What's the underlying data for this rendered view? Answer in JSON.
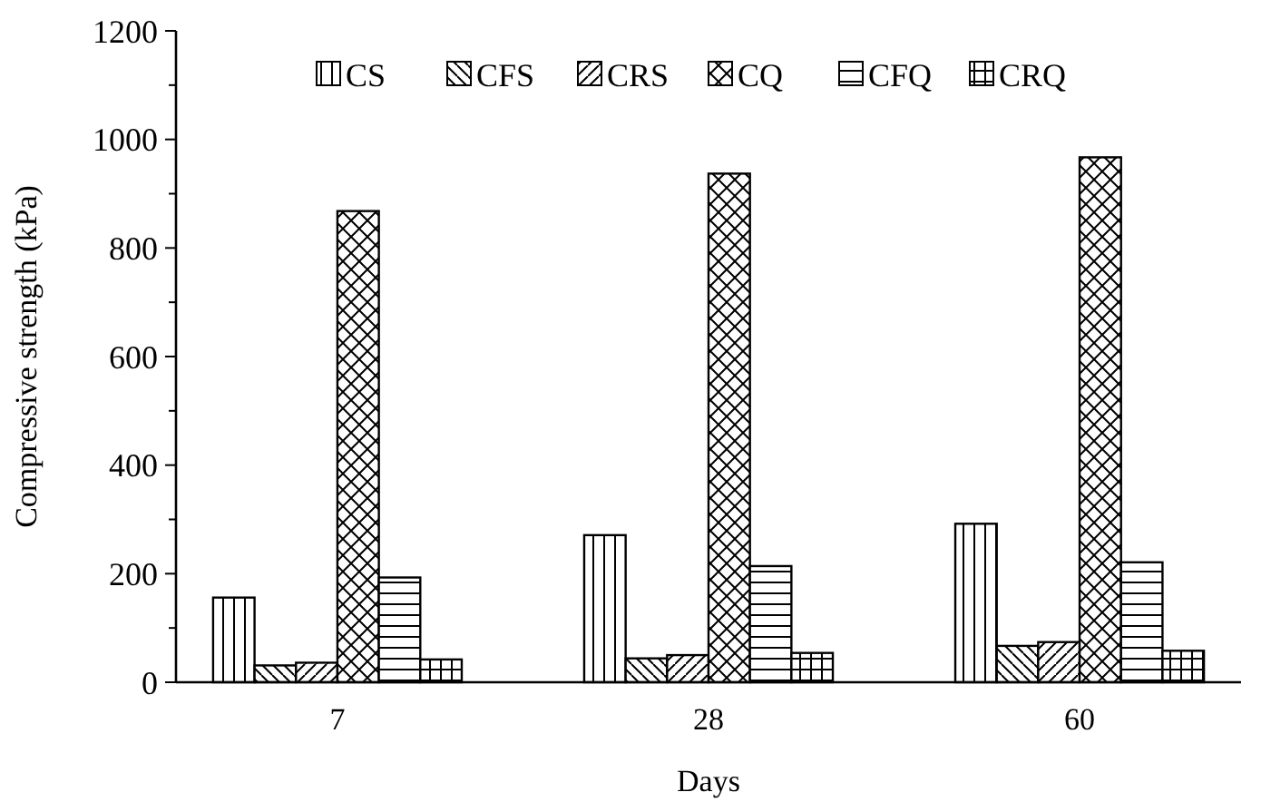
{
  "chart_data": {
    "type": "bar",
    "xlabel": "Days",
    "ylabel": "Compressive strength (kPa)",
    "categories": [
      "7",
      "28",
      "60"
    ],
    "series": [
      {
        "name": "CS",
        "color": "#000000",
        "values": [
          156,
          271,
          292
        ]
      },
      {
        "name": "CFS",
        "color": "#000000",
        "values": [
          31,
          44,
          67
        ]
      },
      {
        "name": "CRS",
        "color": "#000000",
        "values": [
          36,
          50,
          74
        ]
      },
      {
        "name": "CQ",
        "color": "#000000",
        "values": [
          868,
          937,
          967
        ]
      },
      {
        "name": "CFQ",
        "color": "#000000",
        "values": [
          193,
          214,
          221
        ]
      },
      {
        "name": "CRQ",
        "color": "#000000",
        "values": [
          42,
          54,
          58
        ]
      }
    ],
    "ylim": [
      0,
      1200
    ],
    "yticks": [
      0,
      {
        "value": 100,
        "label": null
      },
      200,
      {
        "value": 300,
        "label": null
      },
      400,
      {
        "value": 500,
        "label": null
      },
      600,
      {
        "value": 700,
        "label": null
      },
      800,
      {
        "value": 900,
        "label": null
      },
      1000,
      {
        "value": 1100,
        "label": null
      },
      1200
    ],
    "legend": "top",
    "grid": false
  }
}
